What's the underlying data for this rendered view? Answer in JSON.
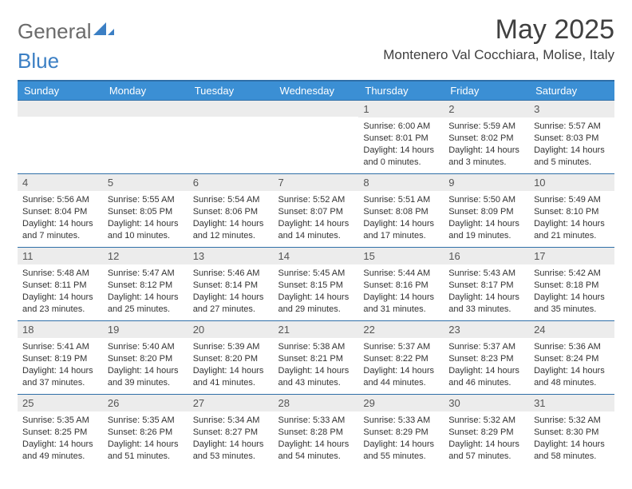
{
  "brand": {
    "part1": "General",
    "part2": "Blue"
  },
  "title": "May 2025",
  "location": "Montenero Val Cocchiara, Molise, Italy",
  "colors": {
    "header_bg": "#3b8fd4",
    "header_text": "#ffffff",
    "border": "#2f6fa8",
    "daynum_bg": "#ececec",
    "logo_gray": "#6b6b6b",
    "logo_blue": "#3b7fc4"
  },
  "weekdays": [
    "Sunday",
    "Monday",
    "Tuesday",
    "Wednesday",
    "Thursday",
    "Friday",
    "Saturday"
  ],
  "weeks": [
    [
      {
        "n": "",
        "sr": "",
        "ss": "",
        "dl": ""
      },
      {
        "n": "",
        "sr": "",
        "ss": "",
        "dl": ""
      },
      {
        "n": "",
        "sr": "",
        "ss": "",
        "dl": ""
      },
      {
        "n": "",
        "sr": "",
        "ss": "",
        "dl": ""
      },
      {
        "n": "1",
        "sr": "Sunrise: 6:00 AM",
        "ss": "Sunset: 8:01 PM",
        "dl": "Daylight: 14 hours and 0 minutes."
      },
      {
        "n": "2",
        "sr": "Sunrise: 5:59 AM",
        "ss": "Sunset: 8:02 PM",
        "dl": "Daylight: 14 hours and 3 minutes."
      },
      {
        "n": "3",
        "sr": "Sunrise: 5:57 AM",
        "ss": "Sunset: 8:03 PM",
        "dl": "Daylight: 14 hours and 5 minutes."
      }
    ],
    [
      {
        "n": "4",
        "sr": "Sunrise: 5:56 AM",
        "ss": "Sunset: 8:04 PM",
        "dl": "Daylight: 14 hours and 7 minutes."
      },
      {
        "n": "5",
        "sr": "Sunrise: 5:55 AM",
        "ss": "Sunset: 8:05 PM",
        "dl": "Daylight: 14 hours and 10 minutes."
      },
      {
        "n": "6",
        "sr": "Sunrise: 5:54 AM",
        "ss": "Sunset: 8:06 PM",
        "dl": "Daylight: 14 hours and 12 minutes."
      },
      {
        "n": "7",
        "sr": "Sunrise: 5:52 AM",
        "ss": "Sunset: 8:07 PM",
        "dl": "Daylight: 14 hours and 14 minutes."
      },
      {
        "n": "8",
        "sr": "Sunrise: 5:51 AM",
        "ss": "Sunset: 8:08 PM",
        "dl": "Daylight: 14 hours and 17 minutes."
      },
      {
        "n": "9",
        "sr": "Sunrise: 5:50 AM",
        "ss": "Sunset: 8:09 PM",
        "dl": "Daylight: 14 hours and 19 minutes."
      },
      {
        "n": "10",
        "sr": "Sunrise: 5:49 AM",
        "ss": "Sunset: 8:10 PM",
        "dl": "Daylight: 14 hours and 21 minutes."
      }
    ],
    [
      {
        "n": "11",
        "sr": "Sunrise: 5:48 AM",
        "ss": "Sunset: 8:11 PM",
        "dl": "Daylight: 14 hours and 23 minutes."
      },
      {
        "n": "12",
        "sr": "Sunrise: 5:47 AM",
        "ss": "Sunset: 8:12 PM",
        "dl": "Daylight: 14 hours and 25 minutes."
      },
      {
        "n": "13",
        "sr": "Sunrise: 5:46 AM",
        "ss": "Sunset: 8:14 PM",
        "dl": "Daylight: 14 hours and 27 minutes."
      },
      {
        "n": "14",
        "sr": "Sunrise: 5:45 AM",
        "ss": "Sunset: 8:15 PM",
        "dl": "Daylight: 14 hours and 29 minutes."
      },
      {
        "n": "15",
        "sr": "Sunrise: 5:44 AM",
        "ss": "Sunset: 8:16 PM",
        "dl": "Daylight: 14 hours and 31 minutes."
      },
      {
        "n": "16",
        "sr": "Sunrise: 5:43 AM",
        "ss": "Sunset: 8:17 PM",
        "dl": "Daylight: 14 hours and 33 minutes."
      },
      {
        "n": "17",
        "sr": "Sunrise: 5:42 AM",
        "ss": "Sunset: 8:18 PM",
        "dl": "Daylight: 14 hours and 35 minutes."
      }
    ],
    [
      {
        "n": "18",
        "sr": "Sunrise: 5:41 AM",
        "ss": "Sunset: 8:19 PM",
        "dl": "Daylight: 14 hours and 37 minutes."
      },
      {
        "n": "19",
        "sr": "Sunrise: 5:40 AM",
        "ss": "Sunset: 8:20 PM",
        "dl": "Daylight: 14 hours and 39 minutes."
      },
      {
        "n": "20",
        "sr": "Sunrise: 5:39 AM",
        "ss": "Sunset: 8:20 PM",
        "dl": "Daylight: 14 hours and 41 minutes."
      },
      {
        "n": "21",
        "sr": "Sunrise: 5:38 AM",
        "ss": "Sunset: 8:21 PM",
        "dl": "Daylight: 14 hours and 43 minutes."
      },
      {
        "n": "22",
        "sr": "Sunrise: 5:37 AM",
        "ss": "Sunset: 8:22 PM",
        "dl": "Daylight: 14 hours and 44 minutes."
      },
      {
        "n": "23",
        "sr": "Sunrise: 5:37 AM",
        "ss": "Sunset: 8:23 PM",
        "dl": "Daylight: 14 hours and 46 minutes."
      },
      {
        "n": "24",
        "sr": "Sunrise: 5:36 AM",
        "ss": "Sunset: 8:24 PM",
        "dl": "Daylight: 14 hours and 48 minutes."
      }
    ],
    [
      {
        "n": "25",
        "sr": "Sunrise: 5:35 AM",
        "ss": "Sunset: 8:25 PM",
        "dl": "Daylight: 14 hours and 49 minutes."
      },
      {
        "n": "26",
        "sr": "Sunrise: 5:35 AM",
        "ss": "Sunset: 8:26 PM",
        "dl": "Daylight: 14 hours and 51 minutes."
      },
      {
        "n": "27",
        "sr": "Sunrise: 5:34 AM",
        "ss": "Sunset: 8:27 PM",
        "dl": "Daylight: 14 hours and 53 minutes."
      },
      {
        "n": "28",
        "sr": "Sunrise: 5:33 AM",
        "ss": "Sunset: 8:28 PM",
        "dl": "Daylight: 14 hours and 54 minutes."
      },
      {
        "n": "29",
        "sr": "Sunrise: 5:33 AM",
        "ss": "Sunset: 8:29 PM",
        "dl": "Daylight: 14 hours and 55 minutes."
      },
      {
        "n": "30",
        "sr": "Sunrise: 5:32 AM",
        "ss": "Sunset: 8:29 PM",
        "dl": "Daylight: 14 hours and 57 minutes."
      },
      {
        "n": "31",
        "sr": "Sunrise: 5:32 AM",
        "ss": "Sunset: 8:30 PM",
        "dl": "Daylight: 14 hours and 58 minutes."
      }
    ]
  ]
}
